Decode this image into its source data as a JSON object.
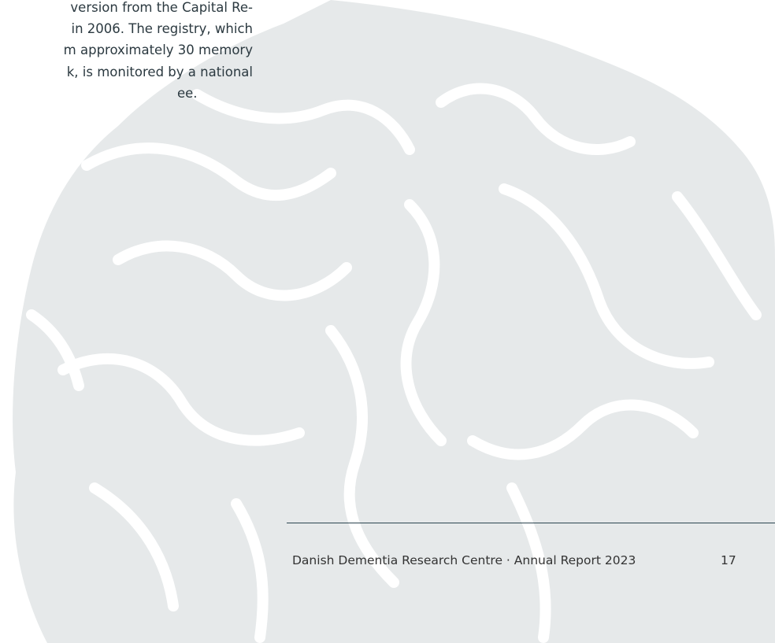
{
  "body": {
    "lines": [
      "version from the Capital Re-",
      "in 2006. The registry, which",
      "m approximately 30 memory",
      "k, is monitored by a national",
      "ee."
    ]
  },
  "footer": {
    "text": "Danish Dementia Research Centre · Annual Report 2023",
    "page_number": "17"
  }
}
